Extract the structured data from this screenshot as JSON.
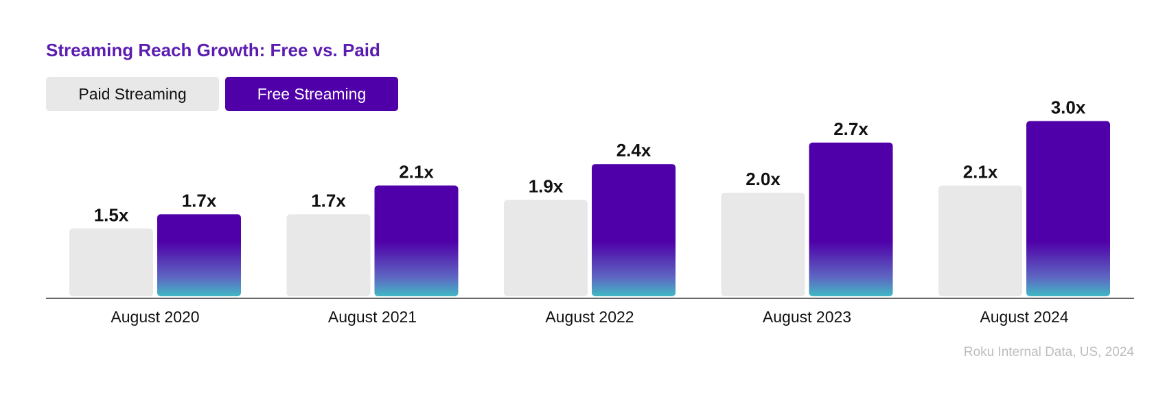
{
  "chart_data": {
    "type": "bar",
    "title": "Streaming Reach Growth: Free vs. Paid",
    "categories": [
      "August 2020",
      "August 2021",
      "August 2022",
      "August 2023",
      "August 2024"
    ],
    "series": [
      {
        "name": "Paid Streaming",
        "values": [
          1.5,
          1.7,
          1.9,
          2.0,
          2.1
        ],
        "labels": [
          "1.5x",
          "1.7x",
          "1.9x",
          "2.0x",
          "2.1x"
        ],
        "color": "#e8e8e8"
      },
      {
        "name": "Free Streaming",
        "values": [
          1.7,
          2.1,
          2.4,
          2.7,
          3.0
        ],
        "labels": [
          "1.7x",
          "2.1x",
          "2.4x",
          "2.7x",
          "3.0x"
        ],
        "color": "#4f00a8",
        "gradient_bottom_color": "#42b8c4"
      }
    ],
    "xlabel": "",
    "ylabel": "",
    "grid": false,
    "legend_position": "top-left",
    "source": "Roku Internal Data, US, 2024"
  }
}
